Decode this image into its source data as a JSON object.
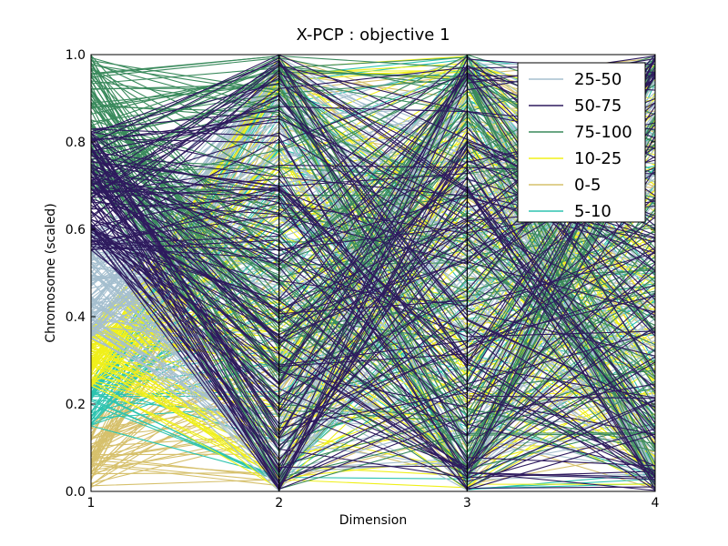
{
  "chart_data": {
    "type": "parallel-coordinates",
    "title": "X-PCP : objective 1",
    "xlabel": "Dimension",
    "ylabel": "Chromosome (scaled)",
    "dimensions": [
      "1",
      "2",
      "3",
      "4"
    ],
    "ylim": [
      0.0,
      1.0
    ],
    "yticks": [
      "0.0",
      "0.2",
      "0.4",
      "0.6",
      "0.8",
      "1.0"
    ],
    "grid": false,
    "legend_position": "top-right",
    "series": [
      {
        "name": "25-50",
        "color": "#a5bfcf",
        "dim1_range": [
          0.35,
          0.6
        ],
        "lines": 120
      },
      {
        "name": "50-75",
        "color": "#2e1a5e",
        "dim1_range": [
          0.55,
          0.83
        ],
        "lines": 120
      },
      {
        "name": "75-100",
        "color": "#3a8a5c",
        "dim1_range": [
          0.68,
          1.0
        ],
        "lines": 110
      },
      {
        "name": "10-25",
        "color": "#f0f01a",
        "dim1_range": [
          0.24,
          0.38
        ],
        "lines": 90
      },
      {
        "name": "0-5",
        "color": "#d6c06b",
        "dim1_range": [
          0.0,
          0.15
        ],
        "lines": 60
      },
      {
        "name": "5-10",
        "color": "#2ec4b0",
        "dim1_range": [
          0.15,
          0.26
        ],
        "lines": 50
      }
    ]
  }
}
